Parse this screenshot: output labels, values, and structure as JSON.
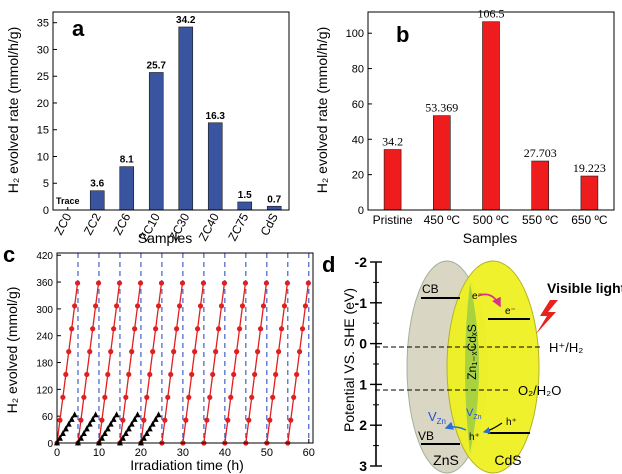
{
  "chart_data": [
    {
      "panel": "a",
      "type": "bar",
      "ylabel": "H₂ evolved rate (mmol/h/g)",
      "xlabel": "Samples",
      "categories": [
        "ZC0",
        "ZC2",
        "ZC6",
        "ZC10",
        "ZC30",
        "ZC40",
        "ZC75",
        "CdS"
      ],
      "values": [
        0,
        3.6,
        8.1,
        25.7,
        34.2,
        16.3,
        1.5,
        0.7
      ],
      "value_labels": [
        "Trace",
        "3.6",
        "8.1",
        "25.7",
        "34.2",
        "16.3",
        "1.5",
        "0.7"
      ],
      "ylim": [
        0,
        37
      ],
      "yticks": [
        "0",
        "5",
        "10",
        "15",
        "20",
        "25",
        "30",
        "35"
      ],
      "color": "#3a55a0"
    },
    {
      "panel": "b",
      "type": "bar",
      "ylabel": "H₂ evolved rate (mmol/h/g)",
      "xlabel": "Samples",
      "categories": [
        "Pristine",
        "450 ºC",
        "500 ºC",
        "550 ºC",
        "650 ºC"
      ],
      "values": [
        34.2,
        53.369,
        106.5,
        27.703,
        19.223
      ],
      "value_labels": [
        "34.2",
        "53.369",
        "106.5",
        "27.703",
        "19.223"
      ],
      "ylim": [
        0,
        112
      ],
      "yticks": [
        "0",
        "20",
        "40",
        "60",
        "80",
        "100"
      ],
      "color": "#ee1c1c"
    },
    {
      "panel": "c",
      "type": "line",
      "ylabel": "H₂ evolved (mmol/g)",
      "xlabel": "Irradiation time (h)",
      "xlim": [
        0,
        61
      ],
      "ylim": [
        0,
        425
      ],
      "xticks": [
        "0",
        "10",
        "20",
        "30",
        "40",
        "50",
        "60"
      ],
      "yticks": [
        "0",
        "60",
        "120",
        "180",
        "240",
        "300",
        "360",
        "420"
      ],
      "cycle_starts": [
        0,
        5,
        10,
        15,
        20,
        25,
        30,
        35,
        40,
        45,
        50,
        55
      ],
      "cycle_rate": 73,
      "cycle_max": 4.9,
      "second_series": {
        "cycle_starts": [
          0,
          5,
          10,
          15,
          20
        ],
        "cycle_rate": 15,
        "cycle_max": 4.6
      },
      "dash_positions": [
        5,
        10,
        15,
        20,
        25,
        30,
        35,
        40,
        45,
        50,
        55,
        60
      ],
      "series_colors": [
        "#e02020",
        "#000000"
      ],
      "dash_color": "#1f3fbf"
    },
    {
      "panel": "d",
      "type": "diagram",
      "ylabel": "Potential VS. SHE (eV)",
      "yticks": [
        "-2",
        "-1",
        "0",
        "1",
        "2",
        "3"
      ],
      "labels": {
        "cb": "CB",
        "vb": "VB",
        "zns": "ZnS",
        "cds": "CdS",
        "solid_solution": "Zn₁₋ₓCdₓS",
        "visible_light": "Visible light",
        "h_couple": "H⁺/H₂",
        "o_couple": "O₂/H₂O",
        "electron": "e⁻",
        "hole": "h⁺",
        "vacancy": "V",
        "vacancy_sub": "Zn"
      }
    }
  ],
  "panel_letters": [
    "a",
    "b",
    "c",
    "d"
  ]
}
